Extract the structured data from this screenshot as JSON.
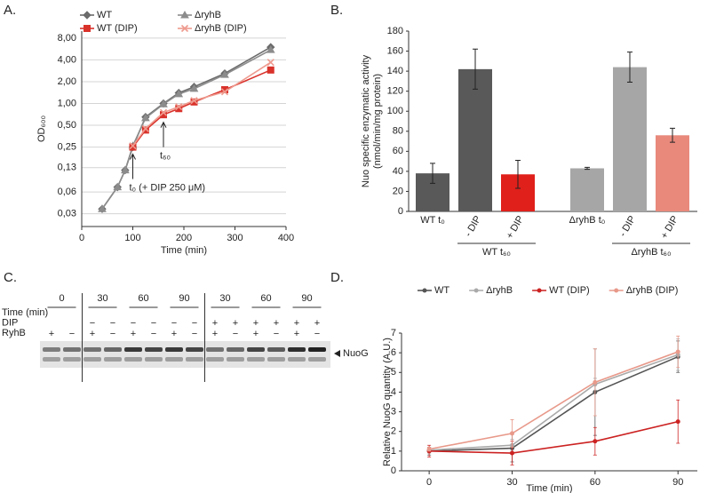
{
  "chart_data": [
    {
      "type": "line",
      "panel": "A.",
      "log_y": true,
      "grid": true,
      "legend": "upper left",
      "xlabel": "Time (min)",
      "ylabel": "OD₆₀₀",
      "x": [
        40,
        70,
        85,
        100,
        125,
        160,
        190,
        220,
        280,
        370
      ],
      "xlim": [
        0,
        400
      ],
      "xticks": [
        0,
        100,
        200,
        300,
        400
      ],
      "ylim": [
        0.02,
        10
      ],
      "yticks": [
        {
          "value": 0.03,
          "label": "0,03"
        },
        {
          "value": 0.06,
          "label": "0,06"
        },
        {
          "value": 0.13,
          "label": "0,13"
        },
        {
          "value": 0.25,
          "label": "0,25"
        },
        {
          "value": 0.5,
          "label": "0,50"
        },
        {
          "value": 1,
          "label": "1,00"
        },
        {
          "value": 2,
          "label": "2,00"
        },
        {
          "value": 4,
          "label": "4,00"
        },
        {
          "value": 8,
          "label": "8,00"
        }
      ],
      "series": [
        {
          "name": "WT",
          "color": "#6b6b6b",
          "marker": "diamond",
          "values": [
            0.035,
            0.07,
            0.12,
            0.25,
            0.65,
            1.0,
            1.4,
            1.7,
            2.6,
            6.0
          ]
        },
        {
          "name": "ΔryhB",
          "color": "#8c8c8c",
          "marker": "triangle",
          "values": [
            0.035,
            0.07,
            0.12,
            0.26,
            0.63,
            0.98,
            1.35,
            1.6,
            2.5,
            5.5
          ]
        },
        {
          "name": "WT (DIP)",
          "color": "#d9322b",
          "marker": "square",
          "values": [
            null,
            null,
            null,
            0.25,
            0.43,
            0.7,
            0.85,
            1.05,
            1.55,
            2.9
          ]
        },
        {
          "name": "ΔryhB (DIP)",
          "color": "#ee9a8e",
          "marker": "cross",
          "values": [
            null,
            null,
            null,
            0.26,
            0.45,
            0.75,
            0.9,
            1.1,
            1.45,
            3.7
          ]
        }
      ],
      "annotations": [
        {
          "text": "t₀ (+ DIP 250 μM)",
          "x": 100,
          "y": 0.2
        },
        {
          "text": "t₆₀",
          "x": 160,
          "y": 0.55
        }
      ]
    },
    {
      "type": "bar",
      "panel": "B.",
      "ylabel": [
        "Nuo specific enzymatic  activity",
        "(nmol/min/mg protein)"
      ],
      "categories": [
        "WT t₀",
        "- DIP",
        "+ DIP",
        "ΔryhB t₀",
        "- DIP",
        "+ DIP"
      ],
      "groups": [
        "WT t₆₀",
        "ΔryhB t₆₀"
      ],
      "values": [
        38,
        142,
        37,
        43,
        144,
        76
      ],
      "errors": [
        10,
        20,
        14,
        1,
        15,
        7
      ],
      "colors": [
        "#595959",
        "#595959",
        "#e0201b",
        "#a6a6a6",
        "#a6a6a6",
        "#e8897c"
      ],
      "ylim": [
        0,
        180
      ],
      "yticks": [
        0,
        20,
        40,
        60,
        80,
        100,
        120,
        140,
        160,
        180
      ]
    },
    {
      "type": "line",
      "panel": "D.",
      "log_y": false,
      "grid": false,
      "legend": "top",
      "xlabel": "Time (min)",
      "ylabel": "Relative NuoG quantity (A.U.)",
      "x": [
        0,
        30,
        60,
        90
      ],
      "xlim": [
        -10,
        97
      ],
      "xticks": [
        0,
        30,
        60,
        90
      ],
      "ylim": [
        0,
        7
      ],
      "yticks": [
        0,
        1,
        2,
        3,
        4,
        5,
        6,
        7
      ],
      "series": [
        {
          "name": "WT",
          "color": "#555555",
          "marker": "dot",
          "values": [
            1.0,
            1.15,
            4.0,
            5.8
          ],
          "errors": [
            0.2,
            0.7,
            2.2,
            0.8
          ]
        },
        {
          "name": "ΔryhB",
          "color": "#aaaaaa",
          "marker": "dot",
          "values": [
            1.05,
            1.3,
            4.4,
            5.9
          ],
          "errors": [
            0.15,
            0.3,
            0.3,
            0.8
          ]
        },
        {
          "name": "WT (DIP)",
          "color": "#cc2222",
          "marker": "dot",
          "values": [
            1.0,
            0.9,
            1.5,
            2.5
          ],
          "errors": [
            0.3,
            0.6,
            0.7,
            1.1
          ]
        },
        {
          "name": "ΔryhB (DIP)",
          "color": "#e8998a",
          "marker": "dot",
          "values": [
            1.1,
            1.9,
            4.5,
            6.05
          ],
          "errors": [
            0.1,
            0.7,
            1.7,
            0.8
          ]
        }
      ]
    }
  ],
  "blot": {
    "panel": "C.",
    "row_labels": [
      "Time (min)",
      "DIP",
      "RyhB"
    ],
    "times": [
      "0",
      "30",
      "60",
      "90",
      "30",
      "60",
      "90"
    ],
    "dip": [
      null,
      null,
      "−",
      "−",
      "−",
      "−",
      "−",
      "−",
      "+",
      "+",
      "+",
      "+",
      "+",
      "+"
    ],
    "ryhb": [
      "+",
      "−",
      "+",
      "−",
      "+",
      "−",
      "+",
      "−",
      "+",
      "−",
      "+",
      "−",
      "+",
      "−"
    ],
    "band": "NuoG"
  }
}
